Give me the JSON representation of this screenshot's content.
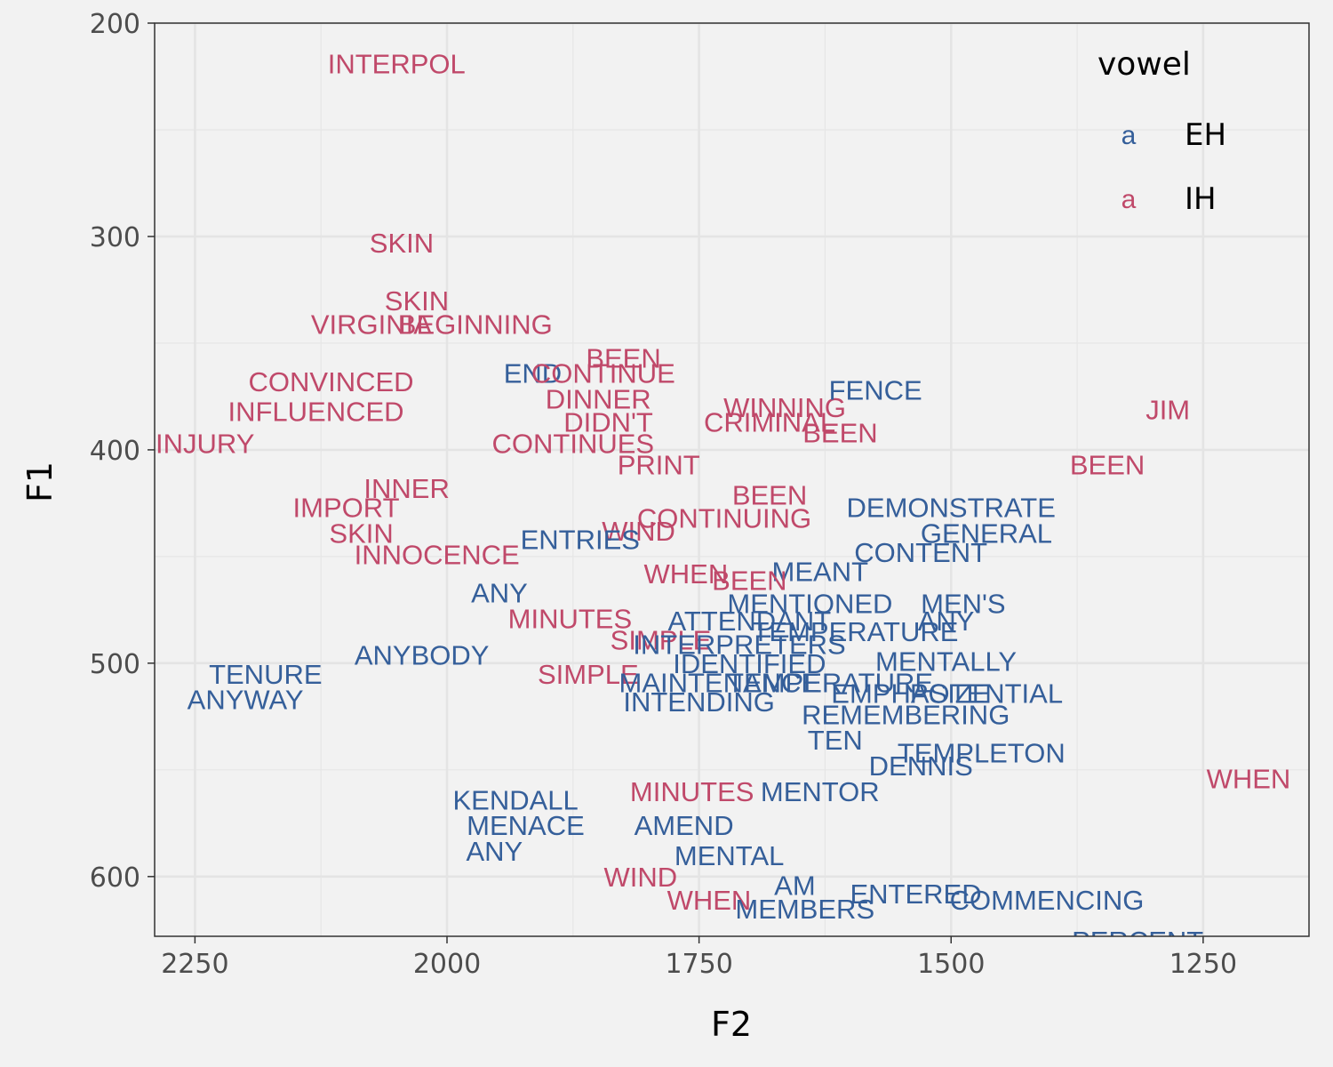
{
  "chart_data": {
    "type": "scatter",
    "xlabel": "F2",
    "ylabel": "F1",
    "x_reversed": true,
    "y_reversed": true,
    "xlim": [
      2290,
      1145
    ],
    "ylim": [
      200,
      628
    ],
    "x_ticks": [
      2250,
      2000,
      1750,
      1500,
      1250
    ],
    "y_ticks": [
      200,
      300,
      400,
      500,
      600
    ],
    "grid": true,
    "legend": {
      "title": "vowel",
      "position": "top-right",
      "key_glyph": "a",
      "entries": [
        {
          "name": "EH",
          "color": "#355f9a"
        },
        {
          "name": "IH",
          "color": "#c0496a"
        }
      ]
    },
    "points": [
      {
        "word": "INTERPOL",
        "vowel": "IH",
        "x": 2050,
        "y": 219
      },
      {
        "word": "SKIN",
        "vowel": "IH",
        "x": 2045,
        "y": 303
      },
      {
        "word": "SKIN",
        "vowel": "IH",
        "x": 2030,
        "y": 330
      },
      {
        "word": "VIRGINIA",
        "vowel": "IH",
        "x": 2075,
        "y": 341
      },
      {
        "word": "BEGINNING",
        "vowel": "IH",
        "x": 1972,
        "y": 341
      },
      {
        "word": "BEEN",
        "vowel": "IH",
        "x": 1825,
        "y": 357
      },
      {
        "word": "END",
        "vowel": "EH",
        "x": 1915,
        "y": 364
      },
      {
        "word": "CONTINUE",
        "vowel": "IH",
        "x": 1845,
        "y": 364
      },
      {
        "word": "CONVINCED",
        "vowel": "IH",
        "x": 2115,
        "y": 368
      },
      {
        "word": "DINNER",
        "vowel": "IH",
        "x": 1850,
        "y": 376
      },
      {
        "word": "INFLUENCED",
        "vowel": "IH",
        "x": 2130,
        "y": 382
      },
      {
        "word": "WINNING",
        "vowel": "IH",
        "x": 1665,
        "y": 380
      },
      {
        "word": "FENCE",
        "vowel": "EH",
        "x": 1575,
        "y": 372
      },
      {
        "word": "JIM",
        "vowel": "IH",
        "x": 1285,
        "y": 381
      },
      {
        "word": "DIDN'T",
        "vowel": "IH",
        "x": 1840,
        "y": 387
      },
      {
        "word": "CRIMINAL",
        "vowel": "IH",
        "x": 1680,
        "y": 387
      },
      {
        "word": "BEEN",
        "vowel": "IH",
        "x": 1610,
        "y": 392
      },
      {
        "word": "CONTINUES",
        "vowel": "IH",
        "x": 1875,
        "y": 397
      },
      {
        "word": "INJURY",
        "vowel": "IH",
        "x": 2240,
        "y": 397
      },
      {
        "word": "PRINT",
        "vowel": "IH",
        "x": 1790,
        "y": 407
      },
      {
        "word": "BEEN",
        "vowel": "IH",
        "x": 1345,
        "y": 407
      },
      {
        "word": "INNER",
        "vowel": "IH",
        "x": 2040,
        "y": 418
      },
      {
        "word": "IMPORT",
        "vowel": "IH",
        "x": 2100,
        "y": 427
      },
      {
        "word": "BEEN",
        "vowel": "IH",
        "x": 1680,
        "y": 421
      },
      {
        "word": "DEMONSTRATE",
        "vowel": "EH",
        "x": 1500,
        "y": 427
      },
      {
        "word": "CONTINUING",
        "vowel": "IH",
        "x": 1725,
        "y": 432
      },
      {
        "word": "WIND",
        "vowel": "IH",
        "x": 1810,
        "y": 438
      },
      {
        "word": "SKIN",
        "vowel": "IH",
        "x": 2085,
        "y": 439
      },
      {
        "word": "ENTRIES",
        "vowel": "EH",
        "x": 1868,
        "y": 442
      },
      {
        "word": "GENERAL",
        "vowel": "EH",
        "x": 1465,
        "y": 439
      },
      {
        "word": "INNOCENCE",
        "vowel": "IH",
        "x": 2010,
        "y": 449
      },
      {
        "word": "CONTENT",
        "vowel": "EH",
        "x": 1530,
        "y": 448
      },
      {
        "word": "WHEN",
        "vowel": "IH",
        "x": 1763,
        "y": 458
      },
      {
        "word": "MEANT",
        "vowel": "EH",
        "x": 1630,
        "y": 457
      },
      {
        "word": "BEEN",
        "vowel": "IH",
        "x": 1700,
        "y": 461
      },
      {
        "word": "ANY",
        "vowel": "EH",
        "x": 1948,
        "y": 467
      },
      {
        "word": "MENTIONED",
        "vowel": "EH",
        "x": 1640,
        "y": 472
      },
      {
        "word": "MEN'S",
        "vowel": "EH",
        "x": 1488,
        "y": 472
      },
      {
        "word": "MINUTES",
        "vowel": "IH",
        "x": 1878,
        "y": 479
      },
      {
        "word": "ATTENDANT",
        "vowel": "EH",
        "x": 1700,
        "y": 480
      },
      {
        "word": "ANY",
        "vowel": "EH",
        "x": 1505,
        "y": 480
      },
      {
        "word": "TEMPERATURE",
        "vowel": "EH",
        "x": 1595,
        "y": 485
      },
      {
        "word": "SIMPLE",
        "vowel": "IH",
        "x": 1788,
        "y": 489
      },
      {
        "word": "INTERPRETERS",
        "vowel": "EH",
        "x": 1710,
        "y": 491
      },
      {
        "word": "ANYBODY",
        "vowel": "EH",
        "x": 2025,
        "y": 496
      },
      {
        "word": "IDENTIFIED",
        "vowel": "EH",
        "x": 1700,
        "y": 500
      },
      {
        "word": "MENTALLY",
        "vowel": "EH",
        "x": 1505,
        "y": 499
      },
      {
        "word": "SIMPLE",
        "vowel": "IH",
        "x": 1860,
        "y": 505
      },
      {
        "word": "MAINTENANCE",
        "vowel": "EH",
        "x": 1730,
        "y": 509
      },
      {
        "word": "TEMPERATURE",
        "vowel": "EH",
        "x": 1620,
        "y": 509
      },
      {
        "word": "EMPHASIZE",
        "vowel": "EH",
        "x": 1540,
        "y": 514
      },
      {
        "word": "POTENTIAL",
        "vowel": "EH",
        "x": 1465,
        "y": 514
      },
      {
        "word": "TENURE",
        "vowel": "EH",
        "x": 2180,
        "y": 505
      },
      {
        "word": "INTENDING",
        "vowel": "EH",
        "x": 1750,
        "y": 518
      },
      {
        "word": "REMEMBERING",
        "vowel": "EH",
        "x": 1545,
        "y": 524
      },
      {
        "word": "ANYWAY",
        "vowel": "EH",
        "x": 2200,
        "y": 517
      },
      {
        "word": "TEN",
        "vowel": "EH",
        "x": 1615,
        "y": 536
      },
      {
        "word": "TEMPLETON",
        "vowel": "EH",
        "x": 1470,
        "y": 542
      },
      {
        "word": "DENNIS",
        "vowel": "EH",
        "x": 1530,
        "y": 548
      },
      {
        "word": "WHEN",
        "vowel": "IH",
        "x": 1205,
        "y": 554
      },
      {
        "word": "KENDALL",
        "vowel": "EH",
        "x": 1932,
        "y": 564
      },
      {
        "word": "MINUTES",
        "vowel": "IH",
        "x": 1757,
        "y": 560
      },
      {
        "word": "MENTOR",
        "vowel": "EH",
        "x": 1630,
        "y": 560
      },
      {
        "word": "MENACE",
        "vowel": "EH",
        "x": 1922,
        "y": 576
      },
      {
        "word": "AMEND",
        "vowel": "EH",
        "x": 1765,
        "y": 576
      },
      {
        "word": "ANY",
        "vowel": "EH",
        "x": 1953,
        "y": 588
      },
      {
        "word": "MENTAL",
        "vowel": "EH",
        "x": 1720,
        "y": 590
      },
      {
        "word": "WIND",
        "vowel": "IH",
        "x": 1808,
        "y": 600
      },
      {
        "word": "AM",
        "vowel": "EH",
        "x": 1655,
        "y": 604
      },
      {
        "word": "ENTERED",
        "vowel": "EH",
        "x": 1535,
        "y": 608
      },
      {
        "word": "COMMENCING",
        "vowel": "EH",
        "x": 1405,
        "y": 611
      },
      {
        "word": "WHEN",
        "vowel": "IH",
        "x": 1740,
        "y": 611
      },
      {
        "word": "MEMBERS",
        "vowel": "EH",
        "x": 1645,
        "y": 615
      },
      {
        "word": "PERCENT",
        "vowel": "EH",
        "x": 1315,
        "y": 630
      }
    ]
  }
}
